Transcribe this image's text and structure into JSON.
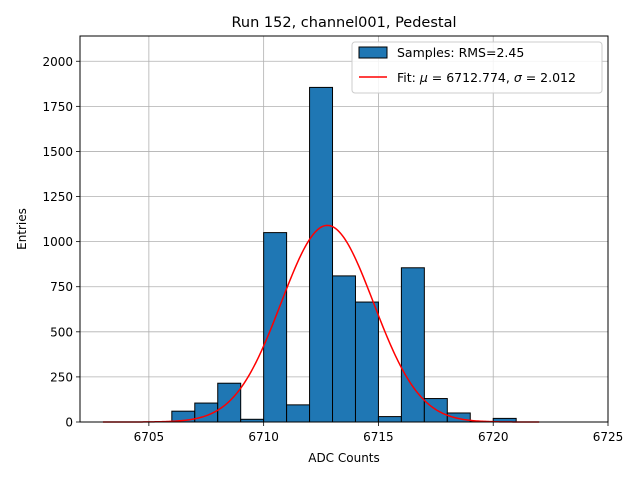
{
  "chart_data": {
    "type": "bar",
    "title": "Run 152, channel001, Pedestal",
    "xlabel": "ADC Counts",
    "ylabel": "Entries",
    "xlim": [
      6702,
      6725
    ],
    "ylim": [
      0,
      2140
    ],
    "xticks": [
      6705,
      6710,
      6715,
      6720,
      6725
    ],
    "yticks": [
      0,
      250,
      500,
      750,
      1000,
      1250,
      1500,
      1750,
      2000
    ],
    "grid": true,
    "legend_position": "top-right",
    "histogram": {
      "name": "Samples: RMS=2.45",
      "color": "#1f77b4",
      "edgecolor": "#000000",
      "bin_width": 1,
      "bin_starts": [
        6706,
        6707,
        6708,
        6709,
        6710,
        6711,
        6712,
        6713,
        6714,
        6715,
        6716,
        6717,
        6718,
        6719,
        6720
      ],
      "values": [
        60,
        105,
        215,
        15,
        1050,
        95,
        1855,
        810,
        665,
        30,
        855,
        130,
        50,
        3,
        20
      ]
    },
    "fit": {
      "name_prefix": "Fit: ",
      "mu_symbol": "μ",
      "mu_text": " = 6712.774, ",
      "sigma_symbol": "σ",
      "sigma_text": " = 2.012",
      "color": "#ff0000",
      "mu": 6712.774,
      "sigma": 2.012,
      "amplitude": 1090,
      "x_range": [
        6703,
        6722
      ]
    }
  }
}
